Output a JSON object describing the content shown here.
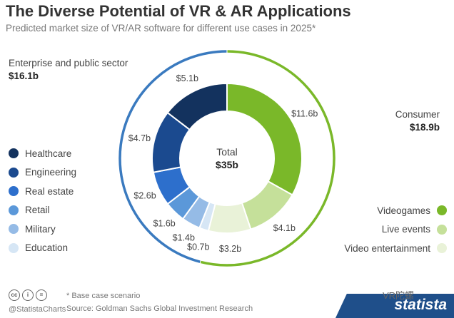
{
  "header": {
    "title": "The Diverse Potential of VR & AR Applications",
    "subtitle": "Predicted market size of VR/AR software for different use cases in 2025*"
  },
  "groups": {
    "enterprise": {
      "label": "Enterprise and public sector",
      "value": "$16.1b",
      "color": "#3a7abf"
    },
    "consumer": {
      "label": "Consumer",
      "value": "$18.9b",
      "color": "#7ab829"
    }
  },
  "chart_data": {
    "type": "pie",
    "center_label": "Total",
    "center_value": "$35b",
    "slices": [
      {
        "name": "Videogames",
        "value": 11.6,
        "label": "$11.6b",
        "color": "#7ab829"
      },
      {
        "name": "Live events",
        "value": 4.1,
        "label": "$4.1b",
        "color": "#c5e09a"
      },
      {
        "name": "Video entertainment",
        "value": 3.2,
        "label": "$3.2b",
        "color": "#e9f2d8"
      },
      {
        "name": "Education",
        "value": 0.7,
        "label": "$0.7b",
        "color": "#d6e6f5"
      },
      {
        "name": "Military",
        "value": 1.4,
        "label": "$1.4b",
        "color": "#95bbe6"
      },
      {
        "name": "Retail",
        "value": 1.6,
        "label": "$1.6b",
        "color": "#5b98d9"
      },
      {
        "name": "Real estate",
        "value": 2.6,
        "label": "$2.6b",
        "color": "#2d6fcc"
      },
      {
        "name": "Engineering",
        "value": 4.7,
        "label": "$4.7b",
        "color": "#1b4a8f"
      },
      {
        "name": "Healthcare",
        "value": 5.1,
        "label": "$5.1b",
        "color": "#13325e"
      }
    ],
    "legend_left": [
      "Healthcare",
      "Engineering",
      "Real estate",
      "Retail",
      "Military",
      "Education"
    ],
    "legend_right": [
      "Videogames",
      "Live events",
      "Video entertainment"
    ]
  },
  "footer": {
    "note": "* Base case scenario",
    "source": "Source: Goldman Sachs Global Investment Research",
    "handle": "@StatistaCharts",
    "brand": "statista",
    "watermark": "VR陀螺"
  }
}
